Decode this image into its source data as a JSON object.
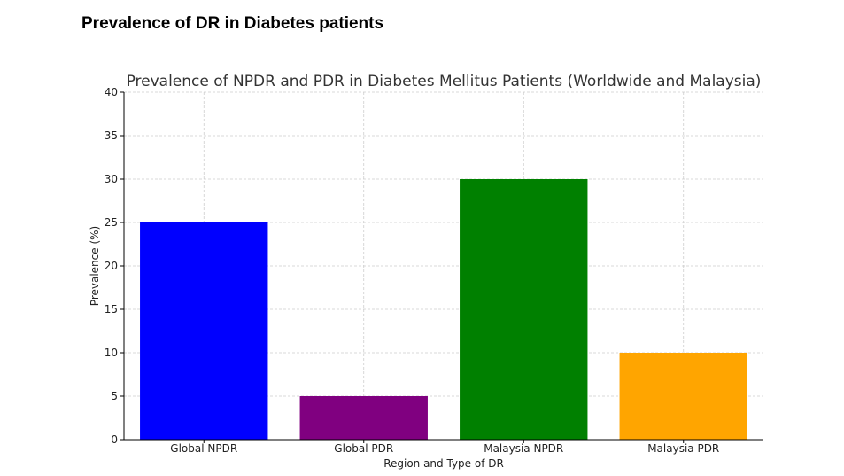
{
  "slide": {
    "title": "Prevalence of DR in Diabetes patients"
  },
  "chart_data": {
    "type": "bar",
    "title": "Prevalence of NPDR and PDR in Diabetes Mellitus Patients (Worldwide and Malaysia)",
    "xlabel": "Region and Type of DR",
    "ylabel": "Prevalence (%)",
    "categories": [
      "Global NPDR",
      "Global PDR",
      "Malaysia NPDR",
      "Malaysia PDR"
    ],
    "values": [
      25,
      5,
      30,
      10
    ],
    "colors": [
      "#0000ff",
      "#800080",
      "#008000",
      "#ffa500"
    ],
    "ylim": [
      0,
      40
    ],
    "yticks": [
      0,
      5,
      10,
      15,
      20,
      25,
      30,
      35,
      40
    ],
    "grid": true
  }
}
